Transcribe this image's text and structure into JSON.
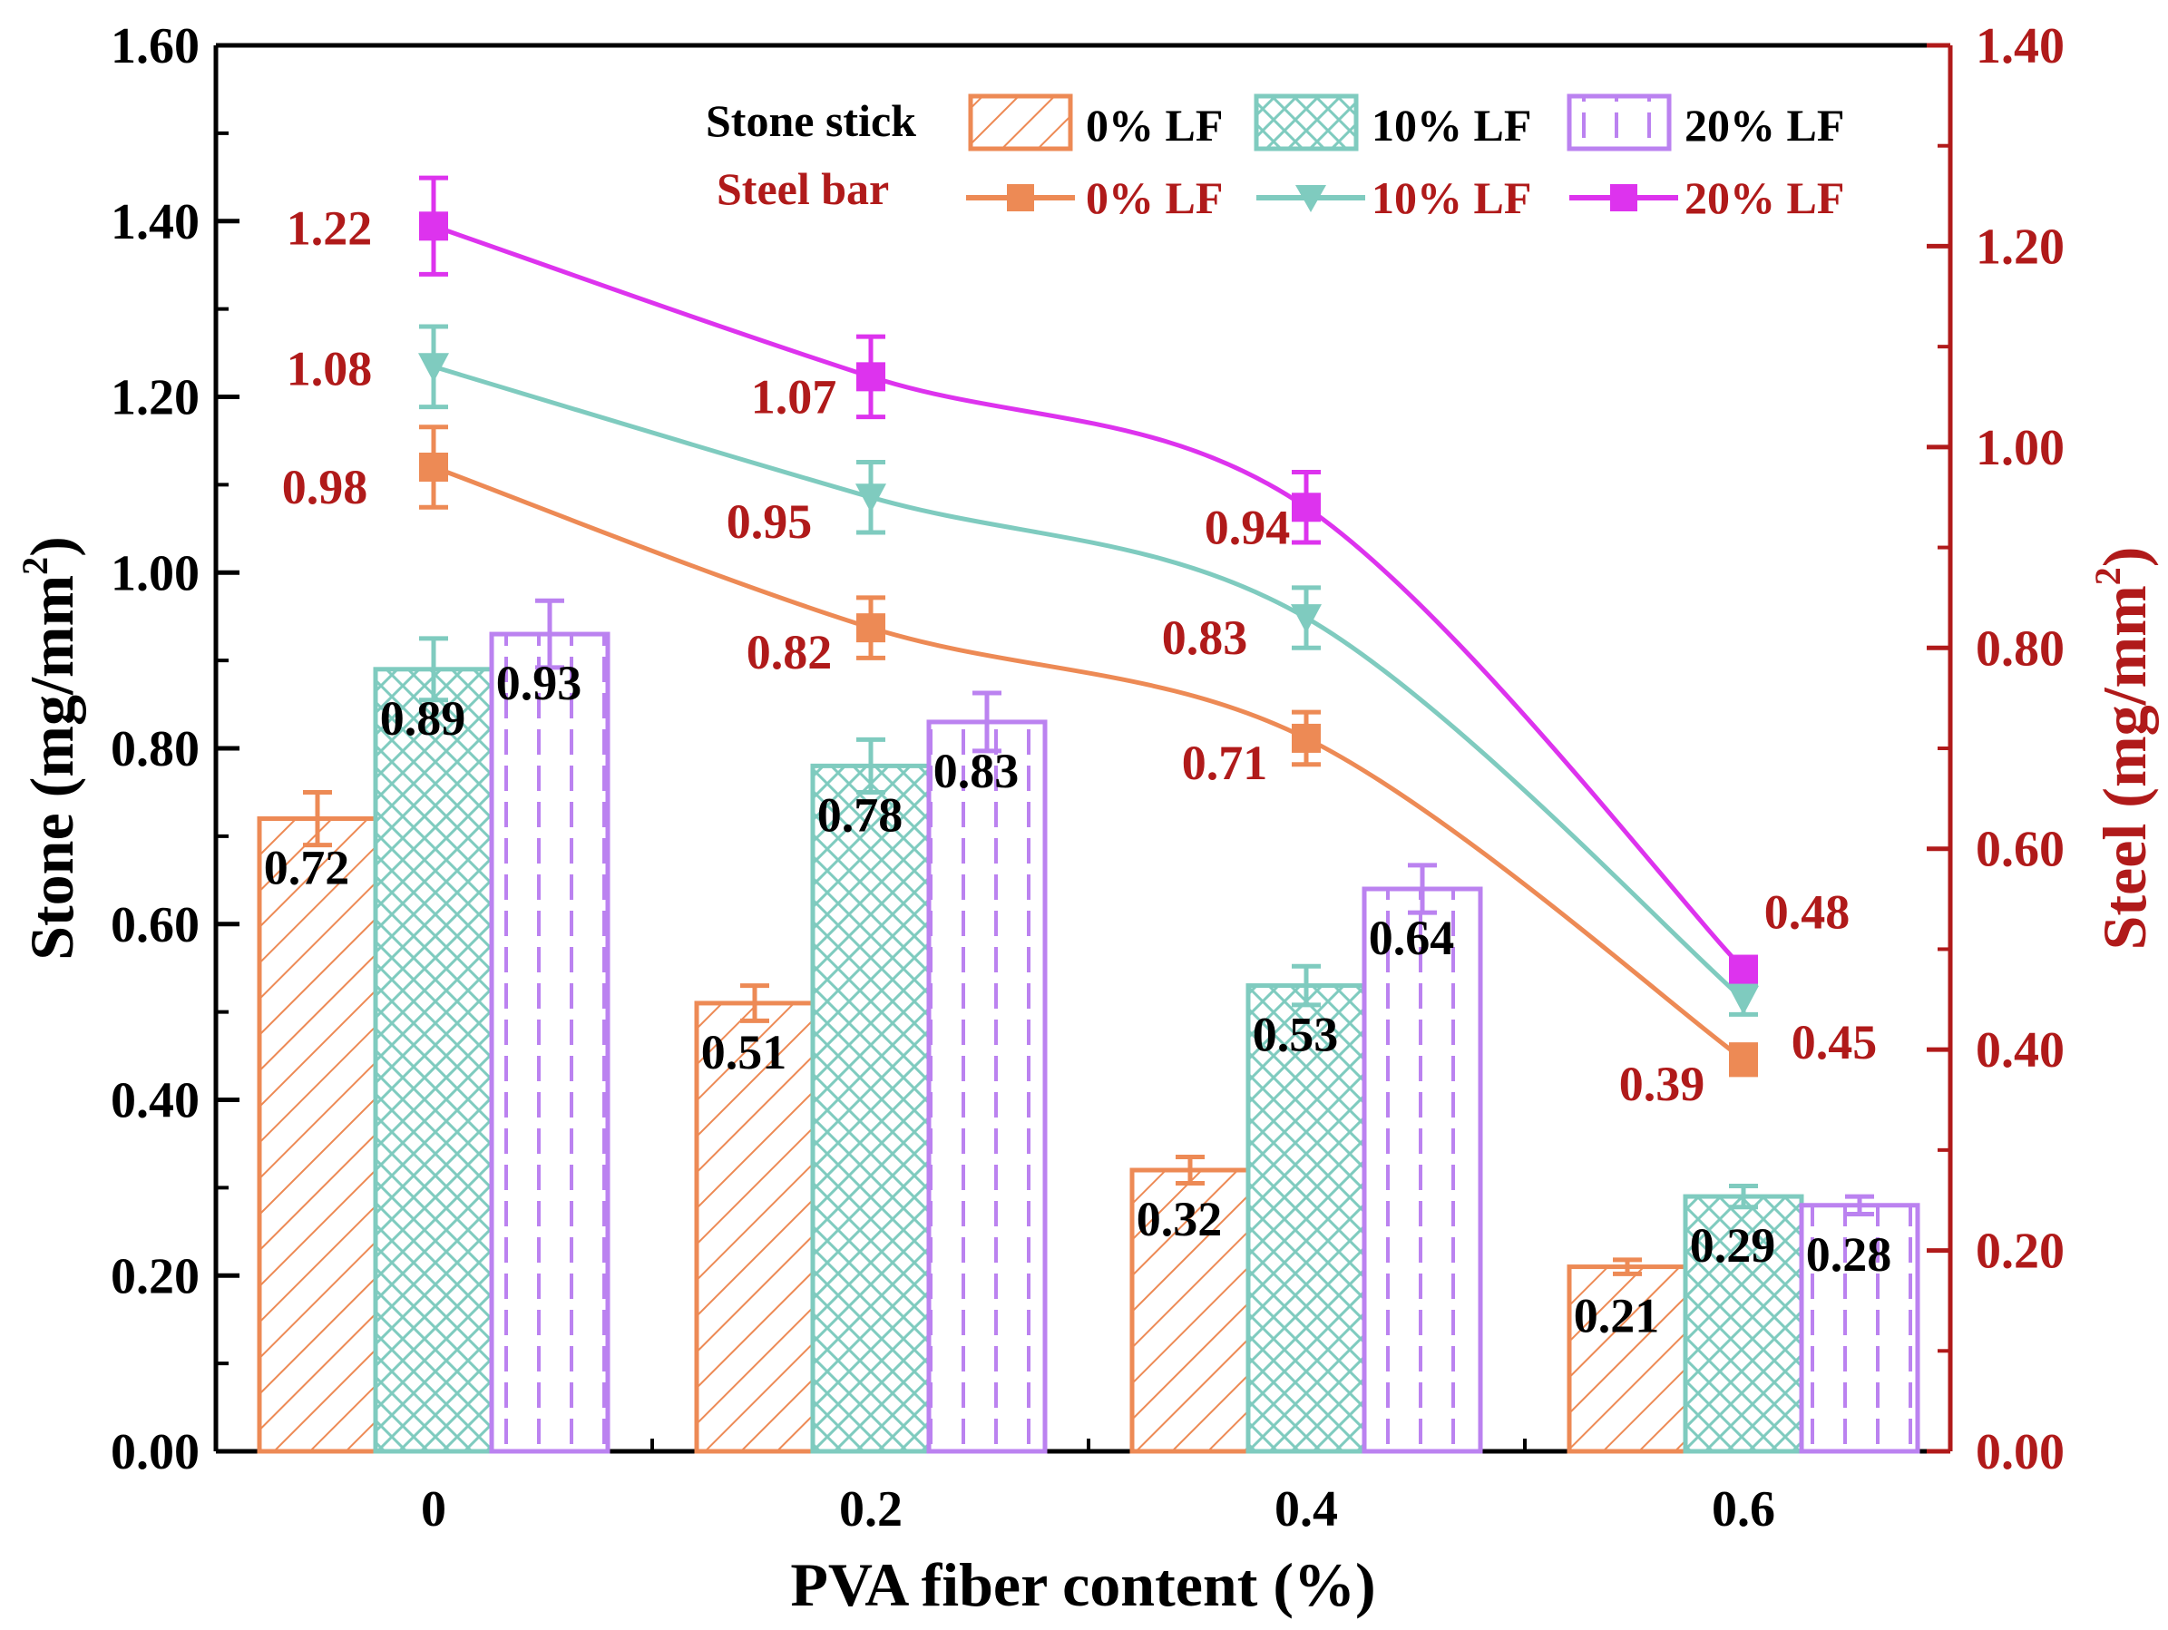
{
  "chart_data": {
    "type": "bar",
    "xlabel": "PVA fiber content (%)",
    "ylabel": "Stone (mg/mm",
    "ylabel_sup": "2",
    "ylabel_close": ")",
    "y2label": "Steel (mg/mm",
    "y2label_sup": "2",
    "y2label_close": ")",
    "categories": [
      "0",
      "0.2",
      "0.4",
      "0.6"
    ],
    "ylim": [
      0,
      1.6
    ],
    "y2lim": [
      0,
      1.4
    ],
    "left_ticks": [
      "0.00",
      "0.20",
      "0.40",
      "0.60",
      "0.80",
      "1.00",
      "1.20",
      "1.40",
      "1.60"
    ],
    "right_ticks": [
      "0.00",
      "0.20",
      "0.40",
      "0.60",
      "0.80",
      "1.00",
      "1.20",
      "1.40"
    ],
    "bar_series": [
      {
        "name": "0% LF",
        "values": [
          0.72,
          0.51,
          0.32,
          0.21
        ],
        "labels": [
          "0.72",
          "0.51",
          "0.32",
          "0.21"
        ],
        "errors": [
          0.03,
          0.02,
          0.015,
          0.008
        ],
        "color": "#ed8a55"
      },
      {
        "name": "10% LF",
        "values": [
          0.89,
          0.78,
          0.53,
          0.29
        ],
        "labels": [
          "0.89",
          "0.78",
          "0.53",
          "0.29"
        ],
        "errors": [
          0.035,
          0.03,
          0.022,
          0.012
        ],
        "color": "#7fcbbf"
      },
      {
        "name": "20% LF",
        "values": [
          0.93,
          0.83,
          0.64,
          0.28
        ],
        "labels": [
          "0.93",
          "0.83",
          "0.64",
          "0.28"
        ],
        "errors": [
          0.038,
          0.033,
          0.027,
          0.01
        ],
        "color": "#bb82f0"
      }
    ],
    "line_series": [
      {
        "name": "0% LF",
        "values": [
          0.98,
          0.82,
          0.71,
          0.39
        ],
        "labels": [
          "0.98",
          "0.82",
          "0.71",
          "0.39"
        ],
        "errors": [
          0.04,
          0.03,
          0.026,
          0.015
        ],
        "color": "#ed8a55",
        "marker": "square"
      },
      {
        "name": "10% LF",
        "values": [
          1.08,
          0.95,
          0.83,
          0.45
        ],
        "labels": [
          "1.08",
          "0.95",
          "0.83",
          "0.45"
        ],
        "errors": [
          0.04,
          0.035,
          0.03,
          0.015
        ],
        "color": "#7fcbbf",
        "marker": "triangle-down"
      },
      {
        "name": "20% LF",
        "values": [
          1.22,
          1.07,
          0.94,
          0.48
        ],
        "labels": [
          "1.22",
          "1.07",
          "0.94",
          "0.48"
        ],
        "errors": [
          0.048,
          0.04,
          0.035,
          0.012
        ],
        "color": "#dd33ee",
        "marker": "square"
      }
    ],
    "legend": {
      "bar_group_title": "Stone stick",
      "line_group_title": "Steel bar",
      "placement": "top-right"
    },
    "grid": false
  },
  "colors": {
    "axis_left": "#000000",
    "axis_right": "#b01a1a",
    "line_label": "#b01a1a"
  }
}
